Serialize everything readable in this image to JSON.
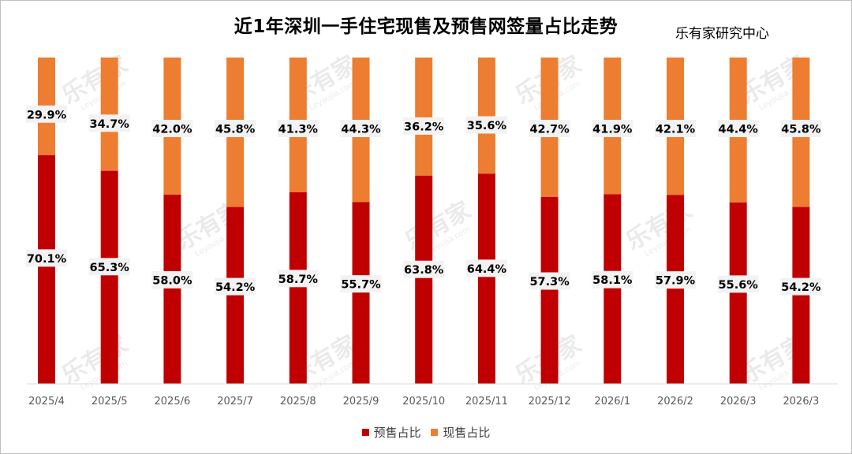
{
  "chart_title": "近1年深圳一手住宅现售及预售网签量占比走势",
  "source": "乐有家研究中心",
  "watermark": {
    "main": "乐有家",
    "sub": "Leyoujia.com"
  },
  "colors": {
    "presale": "#C00000",
    "spot": "#ED7D31",
    "label_bg": "#F2F2F2",
    "axis": "#D9D9D9",
    "tick_text": "#595959"
  },
  "chart_data": {
    "type": "bar",
    "stacked": true,
    "percent": true,
    "title": "近1年深圳一手住宅现售及预售网签量占比走势",
    "categories": [
      "2025/4",
      "2025/5",
      "2025/6",
      "2025/7",
      "2025/8",
      "2025/9",
      "2025/10",
      "2025/11",
      "2025/12",
      "2026/1",
      "2026/2",
      "2026/3",
      "2026/3"
    ],
    "series": [
      {
        "name": "预售占比",
        "values": [
          70.1,
          65.3,
          58.0,
          54.2,
          58.7,
          55.7,
          63.8,
          64.4,
          57.3,
          58.1,
          57.9,
          55.6,
          54.2
        ]
      },
      {
        "name": "现售占比",
        "values": [
          29.9,
          34.7,
          42.0,
          45.8,
          41.3,
          44.3,
          36.2,
          35.6,
          42.7,
          41.9,
          42.1,
          44.4,
          45.8
        ]
      }
    ],
    "labels": {
      "presale": [
        "70.1%",
        "65.3%",
        "58.0%",
        "54.2%",
        "58.7%",
        "55.7%",
        "63.8%",
        "64.4%",
        "57.3%",
        "58.1%",
        "57.9%",
        "55.6%",
        "54.2%"
      ],
      "spot": [
        "29.9%",
        "34.7%",
        "42.0%",
        "45.8%",
        "41.3%",
        "44.3%",
        "36.2%",
        "35.6%",
        "42.7%",
        "41.9%",
        "42.1%",
        "44.4%",
        "45.8%"
      ]
    },
    "ylim": [
      0,
      100
    ],
    "grid": false,
    "legend_position": "bottom"
  }
}
